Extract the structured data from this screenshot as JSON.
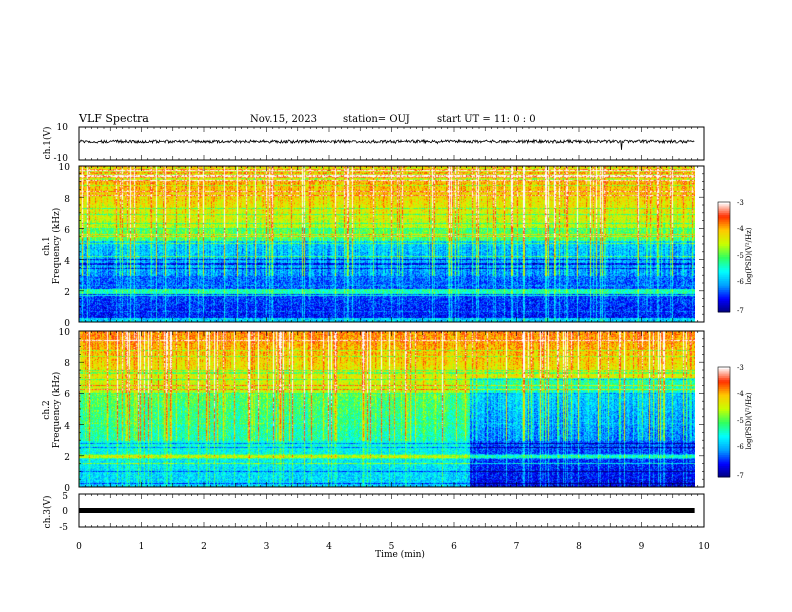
{
  "header": {
    "title": "VLF Spectra",
    "date": "Nov.15, 2023",
    "station": "station= OUJ",
    "start": "start  UT =  11: 0  : 0"
  },
  "panels": {
    "ch1_waveform": {
      "ylabel": "ch.1(V)",
      "yticks": [
        "10",
        "-10"
      ]
    },
    "ch1_spectrogram": {
      "ylabel": "ch.1",
      "ylabel2": "Frequency (kHz)",
      "yticks": [
        "10",
        "8",
        "6",
        "4",
        "2",
        "0"
      ]
    },
    "ch2_spectrogram": {
      "ylabel": "ch.2",
      "ylabel2": "Frequency (kHz)",
      "yticks": [
        "10",
        "8",
        "6",
        "4",
        "2",
        "0"
      ]
    },
    "ch3_waveform": {
      "ylabel": "ch.3(V)",
      "yticks": [
        "5",
        "0",
        "-5"
      ]
    }
  },
  "colorbar": {
    "label": "log(PSD)(V²/Hz)",
    "ticks": [
      "-3",
      "-4",
      "-5",
      "-6",
      "-7"
    ],
    "colors": [
      "#00007a",
      "#0000ff",
      "#00a0ff",
      "#00ffff",
      "#30ff60",
      "#c8ff00",
      "#ffc800",
      "#ff3000",
      "#ffffff"
    ]
  },
  "chart_data": {
    "type": "heatmap",
    "title": "VLF Spectra",
    "xlabel": "Time (min)",
    "xlim": [
      0,
      10
    ],
    "xticks": [
      "0",
      "1",
      "2",
      "3",
      "4",
      "5",
      "6",
      "7",
      "8",
      "9",
      "10"
    ],
    "data_end_min": 9.85,
    "channels": [
      {
        "name": "ch.1",
        "ylim_khz": [
          0,
          10
        ],
        "clim_log_psd": [
          -7,
          -3
        ],
        "notable": {
          "tone_khz": 2,
          "tone_bursts_min": [
            1.5,
            5.2,
            8.1
          ]
        }
      },
      {
        "name": "ch.2",
        "ylim_khz": [
          0,
          10
        ],
        "clim_log_psd": [
          -7,
          -3
        ],
        "notable": {
          "level_drop_after_min": 6.25,
          "tone_khz": 2
        }
      }
    ],
    "waveforms": [
      {
        "name": "ch.1(V)",
        "ylim": [
          -10,
          10
        ],
        "mean": 0
      },
      {
        "name": "ch.3(V)",
        "ylim": [
          -5,
          5
        ],
        "mean": 0
      }
    ]
  }
}
